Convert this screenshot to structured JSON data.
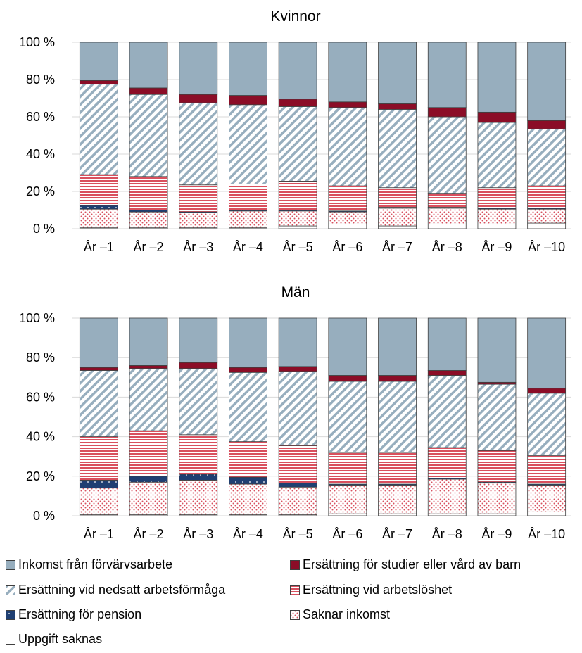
{
  "colors": {
    "inkomst": "#97aebe",
    "studier": "#8b0d27",
    "nedsatt_stripe": "#97aebe",
    "arbetsloshet_stripe": "#d9505e",
    "pension": "#1f3f72",
    "saknar_dot": "#d9505e",
    "grid": "#d9d9d9",
    "border": "#404040"
  },
  "chart_data": [
    {
      "type": "bar",
      "stacked": true,
      "title": "Kvinnor",
      "categories": [
        "År –1",
        "År –2",
        "År –3",
        "År –4",
        "År –5",
        "År –6",
        "År –7",
        "År –8",
        "År –9",
        "År –10"
      ],
      "ylim": [
        0,
        100
      ],
      "yticks": [
        "0 %",
        "20 %",
        "40 %",
        "60 %",
        "80 %",
        "100 %"
      ],
      "grid": true,
      "series": [
        {
          "key": "uppgift",
          "values": [
            0.5,
            0.5,
            0.5,
            0.5,
            1.5,
            2.5,
            1.5,
            2.5,
            2.5,
            3
          ]
        },
        {
          "key": "saknar",
          "values": [
            10,
            8.5,
            8,
            9,
            8,
            6.5,
            9.5,
            8.5,
            8,
            7.5
          ]
        },
        {
          "key": "pension",
          "values": [
            2,
            1,
            0.5,
            0.5,
            0.5,
            0.5,
            0.5,
            0.5,
            0.5,
            0.5
          ]
        },
        {
          "key": "arbetsloshet",
          "values": [
            16.5,
            18,
            14.5,
            14,
            15.5,
            13.5,
            10.5,
            7.5,
            11,
            12
          ]
        },
        {
          "key": "nedsatt",
          "values": [
            48.5,
            44,
            44,
            42.5,
            40,
            42,
            42,
            41,
            35,
            30.5
          ]
        },
        {
          "key": "studier",
          "values": [
            2,
            3.5,
            4.5,
            5,
            4,
            3,
            3,
            5,
            5.5,
            4.5
          ]
        },
        {
          "key": "inkomst",
          "values": [
            20.5,
            24.5,
            28,
            28.5,
            30.5,
            32,
            33,
            35,
            37.5,
            42
          ]
        }
      ]
    },
    {
      "type": "bar",
      "stacked": true,
      "title": "Män",
      "categories": [
        "År –1",
        "År –2",
        "År –3",
        "År –4",
        "År –5",
        "År –6",
        "År –7",
        "År –8",
        "År –9",
        "År –10"
      ],
      "ylim": [
        0,
        100
      ],
      "yticks": [
        "0 %",
        "20 %",
        "40 %",
        "60 %",
        "80 %",
        "100 %"
      ],
      "grid": true,
      "series": [
        {
          "key": "uppgift",
          "values": [
            0.5,
            0.5,
            0.5,
            0.5,
            0.5,
            1,
            1,
            1,
            1,
            2
          ]
        },
        {
          "key": "saknar",
          "values": [
            13.5,
            16.5,
            17.5,
            15.5,
            14,
            14.5,
            14.5,
            17.5,
            15.5,
            13.5
          ]
        },
        {
          "key": "pension",
          "values": [
            4,
            3,
            3,
            3.5,
            2,
            0.5,
            0.5,
            0.5,
            0.5,
            0.5
          ]
        },
        {
          "key": "arbetsloshet",
          "values": [
            22,
            23,
            20,
            18,
            19,
            16,
            16,
            15.5,
            16,
            14.5
          ]
        },
        {
          "key": "nedsatt",
          "values": [
            33.5,
            31.5,
            33.5,
            35,
            37.5,
            36,
            36,
            36.5,
            33.5,
            31.5
          ]
        },
        {
          "key": "studier",
          "values": [
            1.5,
            1.5,
            3,
            2.5,
            2.5,
            3,
            3,
            2.5,
            1,
            2.5
          ]
        },
        {
          "key": "inkomst",
          "values": [
            25,
            24,
            22.5,
            25,
            24.5,
            29,
            29,
            26.5,
            32.5,
            35.5
          ]
        }
      ]
    }
  ],
  "legend": {
    "items": [
      {
        "key": "inkomst",
        "label": "Inkomst från förvärvsarbete"
      },
      {
        "key": "studier",
        "label": "Ersättning för studier eller vård av barn"
      },
      {
        "key": "nedsatt",
        "label": "Ersättning vid nedsatt arbetsförmåga"
      },
      {
        "key": "arbetsloshet",
        "label": "Ersättning vid arbetslöshet"
      },
      {
        "key": "pension",
        "label": "Ersättning för pension"
      },
      {
        "key": "saknar",
        "label": "Saknar inkomst"
      },
      {
        "key": "uppgift",
        "label": "Uppgift saknas"
      }
    ]
  }
}
